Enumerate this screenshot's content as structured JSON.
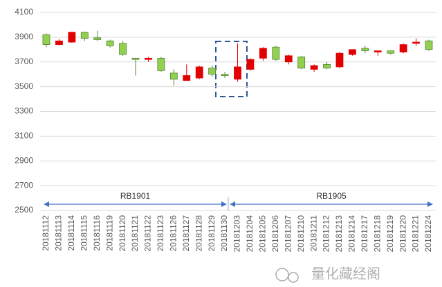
{
  "chart_data": {
    "type": "candlestick",
    "categories": [
      "20181112",
      "20181113",
      "20181114",
      "20181115",
      "20181116",
      "20181119",
      "20181120",
      "20181121",
      "20181122",
      "20181123",
      "20181126",
      "20181127",
      "20181128",
      "20181129",
      "20181130",
      "20181203",
      "20181204",
      "20181205",
      "20181206",
      "20181207",
      "20181210",
      "20181211",
      "20181212",
      "20181213",
      "20181214",
      "20181217",
      "20181218",
      "20181219",
      "20181220",
      "20181221",
      "20181224"
    ],
    "open": [
      3920,
      3840,
      3860,
      3940,
      3895,
      3870,
      3850,
      3730,
      3720,
      3730,
      3610,
      3550,
      3570,
      3650,
      3600,
      3560,
      3640,
      3730,
      3820,
      3700,
      3740,
      3640,
      3680,
      3660,
      3760,
      3810,
      3780,
      3790,
      3780,
      3850,
      3870
    ],
    "high": [
      3930,
      3885,
      3945,
      3945,
      3950,
      3880,
      3870,
      3730,
      3740,
      3740,
      3640,
      3680,
      3670,
      3670,
      3620,
      3850,
      3730,
      3820,
      3830,
      3760,
      3750,
      3680,
      3700,
      3780,
      3800,
      3830,
      3790,
      3790,
      3850,
      3890,
      3880
    ],
    "low": [
      3820,
      3835,
      3855,
      3870,
      3870,
      3815,
      3750,
      3590,
      3700,
      3620,
      3510,
      3550,
      3560,
      3580,
      3570,
      3540,
      3630,
      3710,
      3710,
      3680,
      3640,
      3620,
      3640,
      3650,
      3750,
      3770,
      3750,
      3760,
      3770,
      3830,
      3790
    ],
    "close": [
      3840,
      3870,
      3940,
      3890,
      3880,
      3830,
      3760,
      3720,
      3730,
      3630,
      3560,
      3590,
      3660,
      3600,
      3590,
      3660,
      3720,
      3810,
      3720,
      3750,
      3650,
      3670,
      3650,
      3770,
      3800,
      3790,
      3790,
      3770,
      3840,
      3860,
      3800
    ],
    "up_color": "#e00000",
    "down_color": "#92d050",
    "ylim": [
      2500,
      4100
    ],
    "yticks": [
      2500,
      2700,
      2900,
      3100,
      3300,
      3500,
      3700,
      3900,
      4100
    ],
    "grid": true,
    "annotations": [
      "RB1901",
      "RB1905"
    ],
    "watermark": "量化藏经阁"
  }
}
